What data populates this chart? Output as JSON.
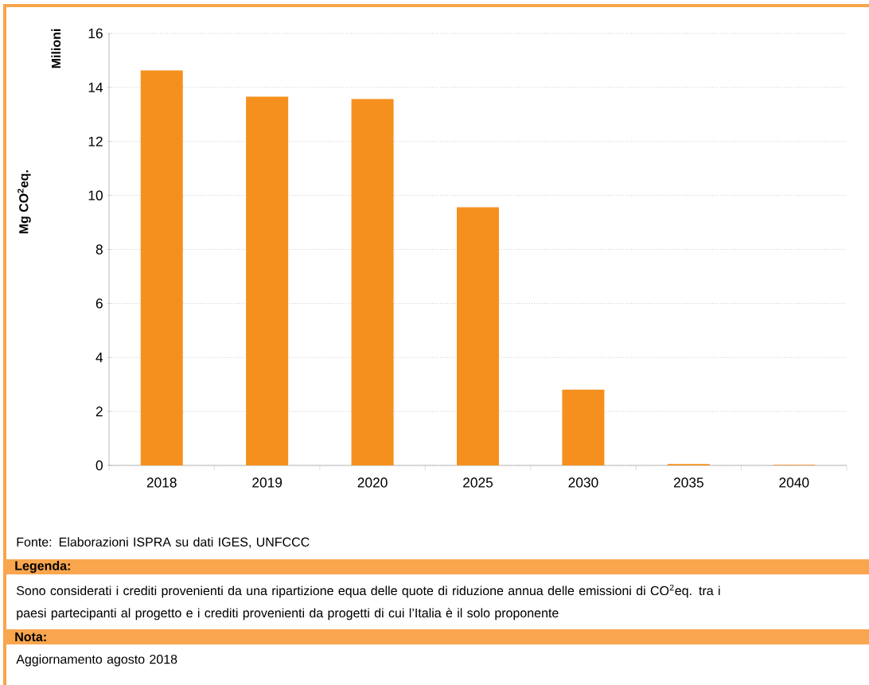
{
  "chart_data": {
    "type": "bar",
    "ylabel": "Mg CO$^{2}$eq.",
    "categories": [
      "2018",
      "2019",
      "2020",
      "2025",
      "2030",
      "2035",
      "2040"
    ],
    "values": [
      14.63,
      13.66,
      13.57,
      9.56,
      2.81,
      0.05,
      0.02
    ],
    "color": "#f5901e",
    "ylim": [
      0,
      16
    ],
    "yticks": [
      0,
      2,
      4,
      6,
      8,
      10,
      12,
      14,
      16
    ],
    "grid": "y",
    "annotations": [
      "Milioni",
      "Fonte: Elaborazioni ISPRA su dati IGES, UNFCCC",
      "Legenda:",
      "Sono considerati i crediti provenienti da una ripartizione equa delle quote di riduzione annua delle emissioni di CO$^{2}$eq. tra i paesi partecipanti al progetto e i crediti provenienti da progetti di cui l’Italia è il solo proponente",
      "Nota:",
      "Aggiornamento agosto 2018"
    ]
  }
}
